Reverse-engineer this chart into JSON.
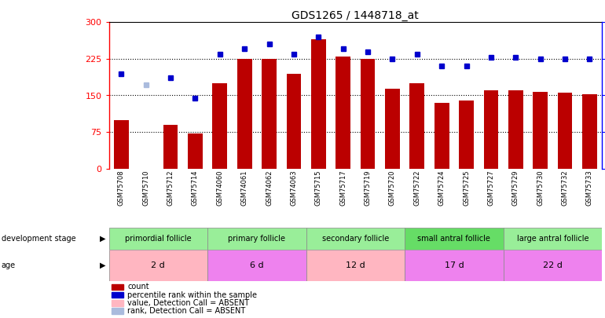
{
  "title": "GDS1265 / 1448718_at",
  "samples": [
    "GSM75708",
    "GSM75710",
    "GSM75712",
    "GSM75714",
    "GSM74060",
    "GSM74061",
    "GSM74062",
    "GSM74063",
    "GSM75715",
    "GSM75717",
    "GSM75719",
    "GSM75720",
    "GSM75722",
    "GSM75724",
    "GSM75725",
    "GSM75727",
    "GSM75729",
    "GSM75730",
    "GSM75732",
    "GSM75733"
  ],
  "count_values": [
    100,
    0,
    90,
    72,
    175,
    225,
    225,
    195,
    265,
    230,
    225,
    163,
    175,
    135,
    140,
    160,
    160,
    157,
    155,
    152
  ],
  "count_absent": [
    false,
    true,
    false,
    false,
    false,
    false,
    false,
    false,
    false,
    false,
    false,
    false,
    false,
    false,
    false,
    false,
    false,
    false,
    false,
    false
  ],
  "rank_values": [
    65,
    57,
    62,
    48,
    78,
    82,
    85,
    78,
    90,
    82,
    80,
    75,
    78,
    70,
    70,
    76,
    76,
    75,
    75,
    75
  ],
  "rank_absent": [
    false,
    true,
    false,
    false,
    false,
    false,
    false,
    false,
    false,
    false,
    false,
    false,
    false,
    false,
    false,
    false,
    false,
    false,
    false,
    false
  ],
  "groups": [
    {
      "name": "primordial follicle",
      "start": 0,
      "end": 4
    },
    {
      "name": "primary follicle",
      "start": 4,
      "end": 8
    },
    {
      "name": "secondary follicle",
      "start": 8,
      "end": 12
    },
    {
      "name": "small antral follicle",
      "start": 12,
      "end": 16
    },
    {
      "name": "large antral follicle",
      "start": 16,
      "end": 20
    }
  ],
  "group_colors": [
    "#99EE99",
    "#99EE99",
    "#99EE99",
    "#66DD66",
    "#99EE99"
  ],
  "ages": [
    {
      "name": "2 d",
      "start": 0,
      "end": 4
    },
    {
      "name": "6 d",
      "start": 4,
      "end": 8
    },
    {
      "name": "12 d",
      "start": 8,
      "end": 12
    },
    {
      "name": "17 d",
      "start": 12,
      "end": 16
    },
    {
      "name": "22 d",
      "start": 16,
      "end": 20
    }
  ],
  "age_colors": [
    "#FFB6C1",
    "#EE82EE",
    "#FFB6C1",
    "#EE82EE",
    "#EE82EE"
  ],
  "ylim_left": [
    0,
    300
  ],
  "ylim_right": [
    0,
    100
  ],
  "yticks_left": [
    0,
    75,
    150,
    225,
    300
  ],
  "yticks_right": [
    0,
    25,
    50,
    75,
    100
  ],
  "hlines": [
    75,
    150,
    225
  ],
  "bar_color": "#BB0000",
  "bar_absent_color": "#FFB6C1",
  "dot_color": "#0000CC",
  "dot_absent_color": "#AABBDD",
  "legend_labels": [
    "count",
    "percentile rank within the sample",
    "value, Detection Call = ABSENT",
    "rank, Detection Call = ABSENT"
  ],
  "legend_colors": [
    "#BB0000",
    "#0000CC",
    "#FFB6C1",
    "#AABBDD"
  ]
}
